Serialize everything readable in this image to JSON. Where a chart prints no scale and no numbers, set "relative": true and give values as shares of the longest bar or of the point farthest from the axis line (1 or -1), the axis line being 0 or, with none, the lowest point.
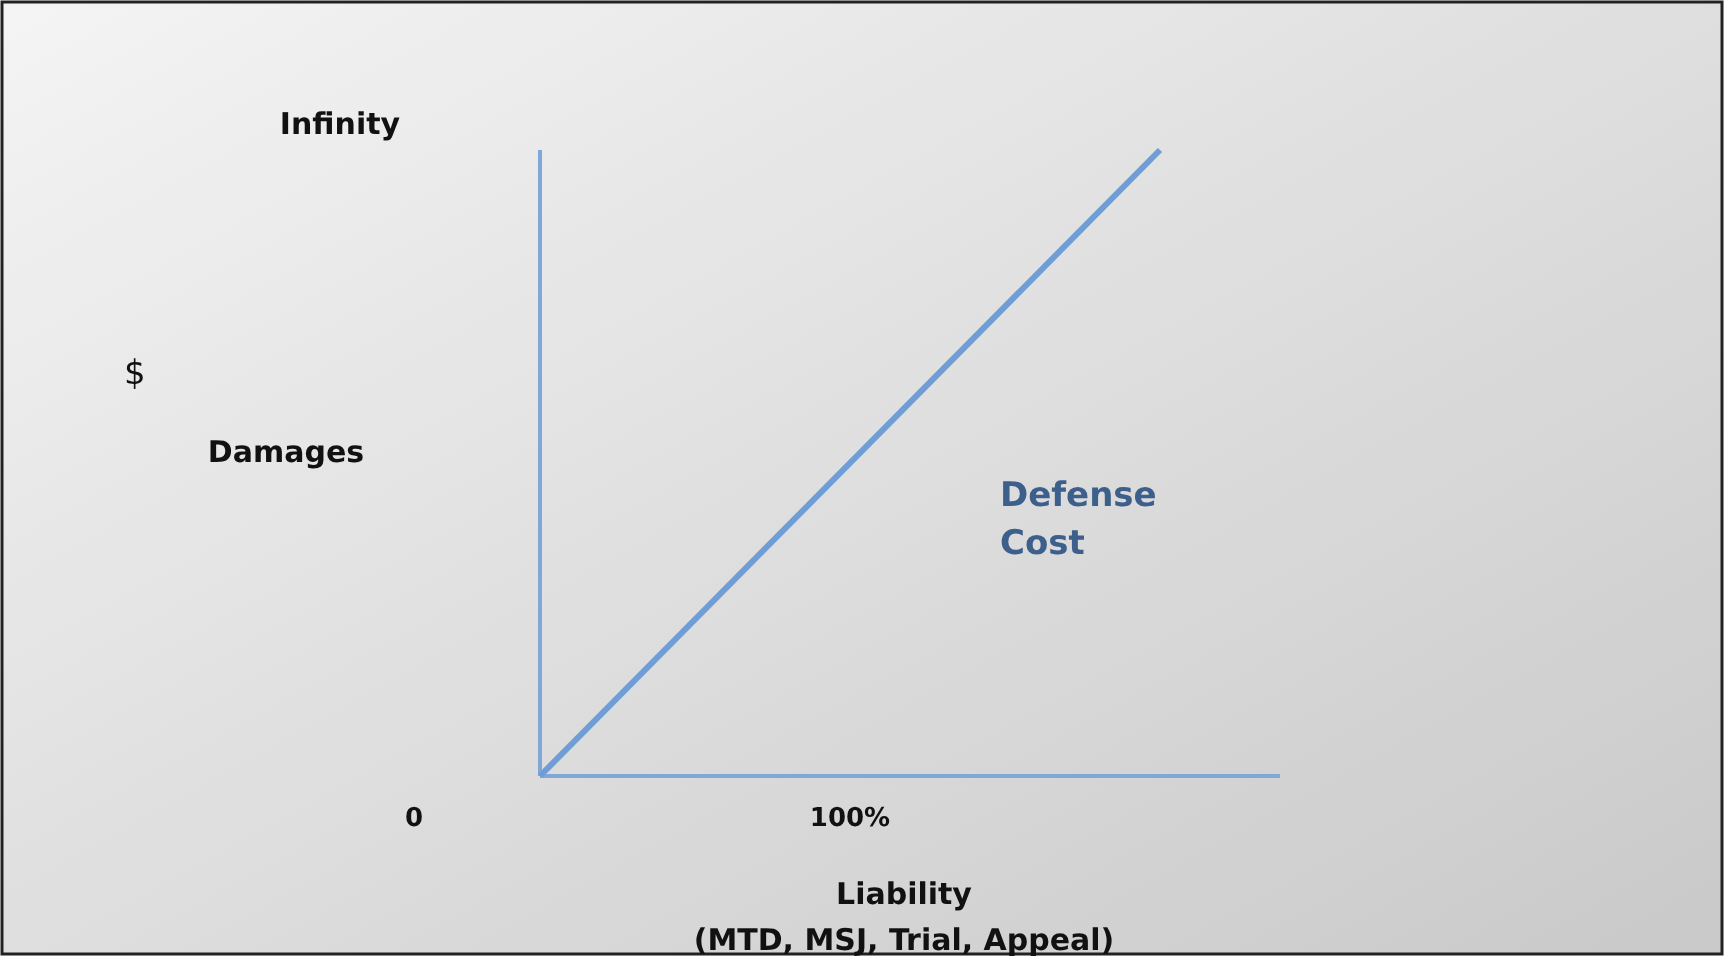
{
  "chart_data": {
    "type": "line",
    "relative": true,
    "categories": [
      null,
      null
    ],
    "series": [
      {
        "color": "#6f9ed6",
        "values": [
          0,
          1
        ]
      }
    ],
    "xlabel": "Liability\n(MTD, MSJ, Trial, Appeal)",
    "ylabel": "Damages",
    "annotations": [
      "Infinity",
      "$",
      "0",
      "100%",
      "Defense Cost"
    ],
    "grid": false,
    "legend": false,
    "marker": "none",
    "line_style": "solid"
  }
}
